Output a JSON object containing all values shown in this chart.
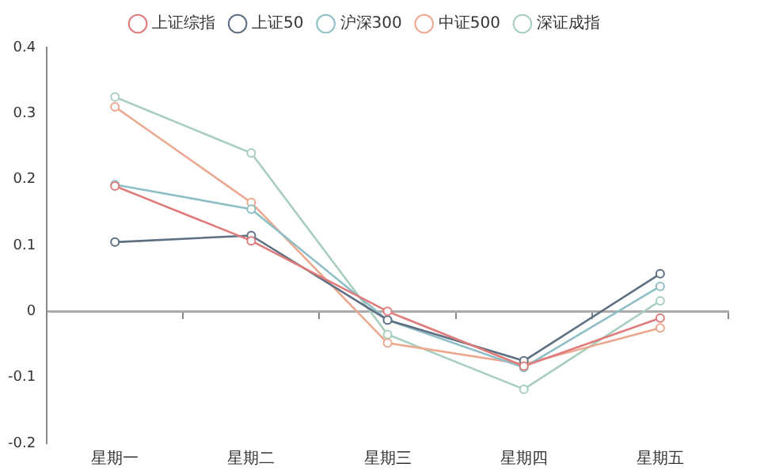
{
  "chart_data": {
    "type": "line",
    "categories": [
      "星期一",
      "星期二",
      "星期三",
      "星期四",
      "星期五"
    ],
    "series": [
      {
        "name": "上证综指",
        "color": "#e07b7b",
        "values": [
          0.19,
          0.107,
          0.0,
          -0.083,
          -0.01
        ]
      },
      {
        "name": "上证50",
        "color": "#5d6f80",
        "values": [
          0.105,
          0.115,
          -0.013,
          -0.075,
          0.057
        ]
      },
      {
        "name": "沪深300",
        "color": "#8fbfc6",
        "values": [
          0.192,
          0.155,
          -0.013,
          -0.085,
          0.038
        ]
      },
      {
        "name": "中证500",
        "color": "#eba88f",
        "values": [
          0.31,
          0.165,
          -0.048,
          -0.08,
          -0.025
        ]
      },
      {
        "name": "深证成指",
        "color": "#a8cfbd",
        "values": [
          0.325,
          0.24,
          -0.035,
          -0.118,
          0.016
        ]
      }
    ],
    "ylim": [
      -0.2,
      0.4
    ],
    "yticks": [
      -0.2,
      -0.1,
      0,
      0.1,
      0.2,
      0.3,
      0.4
    ],
    "legend": "top",
    "marker": "circle",
    "line_style": "solid"
  }
}
